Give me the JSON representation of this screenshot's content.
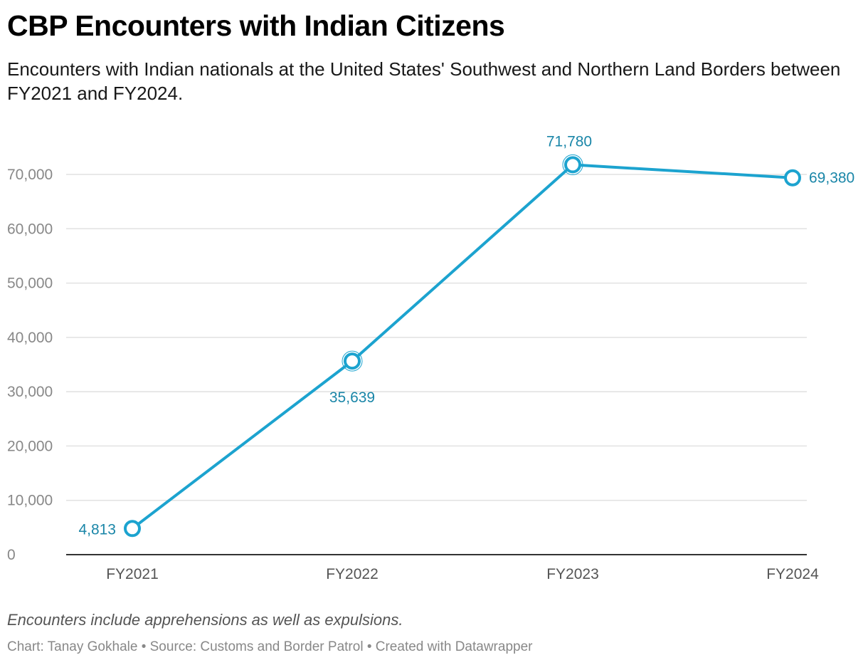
{
  "header": {
    "title": "CBP Encounters with Indian Citizens",
    "description": "Encounters with Indian nationals at the United States' Southwest and Northern Land Borders between FY2021 and FY2024."
  },
  "chart_data": {
    "type": "line",
    "categories": [
      "FY2021",
      "FY2022",
      "FY2023",
      "FY2024"
    ],
    "series": [
      {
        "values": [
          4813,
          35639,
          71780,
          69380
        ],
        "labels": [
          "4,813",
          "35,639",
          "71,780",
          "69,380"
        ],
        "color": "#1ca3cf"
      }
    ],
    "yticks": [
      0,
      10000,
      20000,
      30000,
      40000,
      50000,
      60000,
      70000
    ],
    "ytick_labels": [
      "0",
      "10,000",
      "20,000",
      "30,000",
      "40,000",
      "50,000",
      "60,000",
      "70,000"
    ],
    "ylim": [
      0,
      70000
    ],
    "grid": true,
    "label_color": "#1a86a8"
  },
  "footer": {
    "notes": "Encounters include apprehensions as well as expulsions.",
    "credit": "Chart: Tanay Gokhale • Source: Customs and Border Patrol • Created with Datawrapper"
  }
}
